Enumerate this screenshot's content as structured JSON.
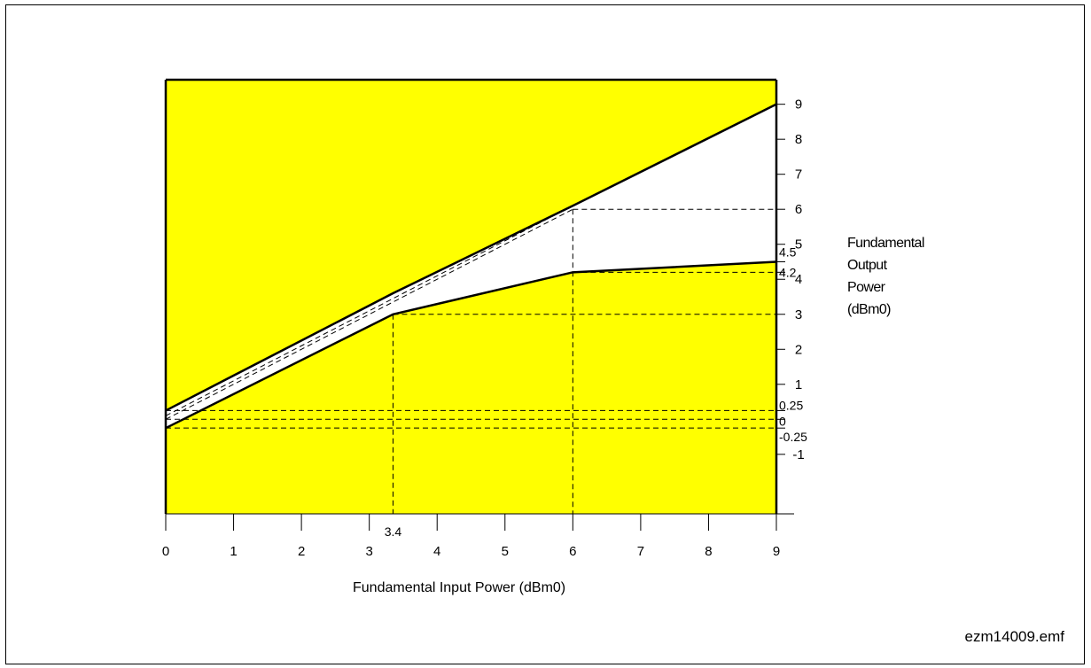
{
  "chart_data": {
    "type": "line",
    "xlabel": "Fundamental Input Power (dBm0)",
    "ylabel_lines": [
      "Fundamental",
      "Output",
      "Power",
      "(dBm0)"
    ],
    "x_ticks": [
      "0",
      "1",
      "2",
      "3",
      "4",
      "5",
      "6",
      "7",
      "8",
      "9"
    ],
    "y_ticks": [
      "-1",
      "1",
      "2",
      "3",
      "4",
      "5",
      "6",
      "7",
      "8",
      "9"
    ],
    "xlim": [
      0,
      9
    ],
    "ylim": [
      -2.7,
      9.7
    ],
    "x_annotation": {
      "label": "3.4",
      "value": 3.35
    },
    "y_annotations": [
      {
        "label": "4.5",
        "value": 4.5
      },
      {
        "label": "4.2",
        "value": 4.2
      },
      {
        "label": "0.25",
        "value": 0.25
      },
      {
        "label": "0",
        "value": 0
      },
      {
        "label": "-0.25",
        "value": -0.25
      }
    ],
    "series": [
      {
        "role": "upper_limit",
        "points": [
          [
            0,
            0.25
          ],
          [
            3.35,
            3.6
          ],
          [
            6,
            6.1
          ],
          [
            9,
            9
          ]
        ]
      },
      {
        "role": "lower_limit",
        "points": [
          [
            0,
            -0.25
          ],
          [
            3.35,
            3.0
          ],
          [
            6,
            4.2
          ],
          [
            9,
            4.5
          ]
        ]
      },
      {
        "role": "reference",
        "points": [
          [
            0,
            0
          ],
          [
            6,
            6
          ]
        ]
      },
      {
        "role": "reference",
        "points": [
          [
            0,
            0.1
          ],
          [
            6,
            6.1
          ]
        ]
      }
    ],
    "guides": [
      {
        "from": [
          3.35,
          3.0
        ],
        "to": [
          3.35,
          -2.7
        ]
      },
      {
        "from": [
          6,
          6
        ],
        "to": [
          6,
          -2.7
        ]
      },
      {
        "from": [
          3.35,
          3.0
        ],
        "to": [
          9,
          3.0
        ]
      },
      {
        "from": [
          6,
          6
        ],
        "to": [
          9,
          6
        ]
      },
      {
        "from": [
          6,
          4.2
        ],
        "to": [
          9,
          4.2
        ]
      },
      {
        "from": [
          0,
          0.25
        ],
        "to": [
          9,
          0.25
        ]
      },
      {
        "from": [
          0,
          0
        ],
        "to": [
          9,
          0
        ]
      },
      {
        "from": [
          0,
          -0.25
        ],
        "to": [
          9,
          -0.25
        ]
      }
    ],
    "colors": {
      "fill": "#ffff00",
      "line": "#000000",
      "background": "#ffffff"
    }
  },
  "filename": "ezm14009.emf"
}
